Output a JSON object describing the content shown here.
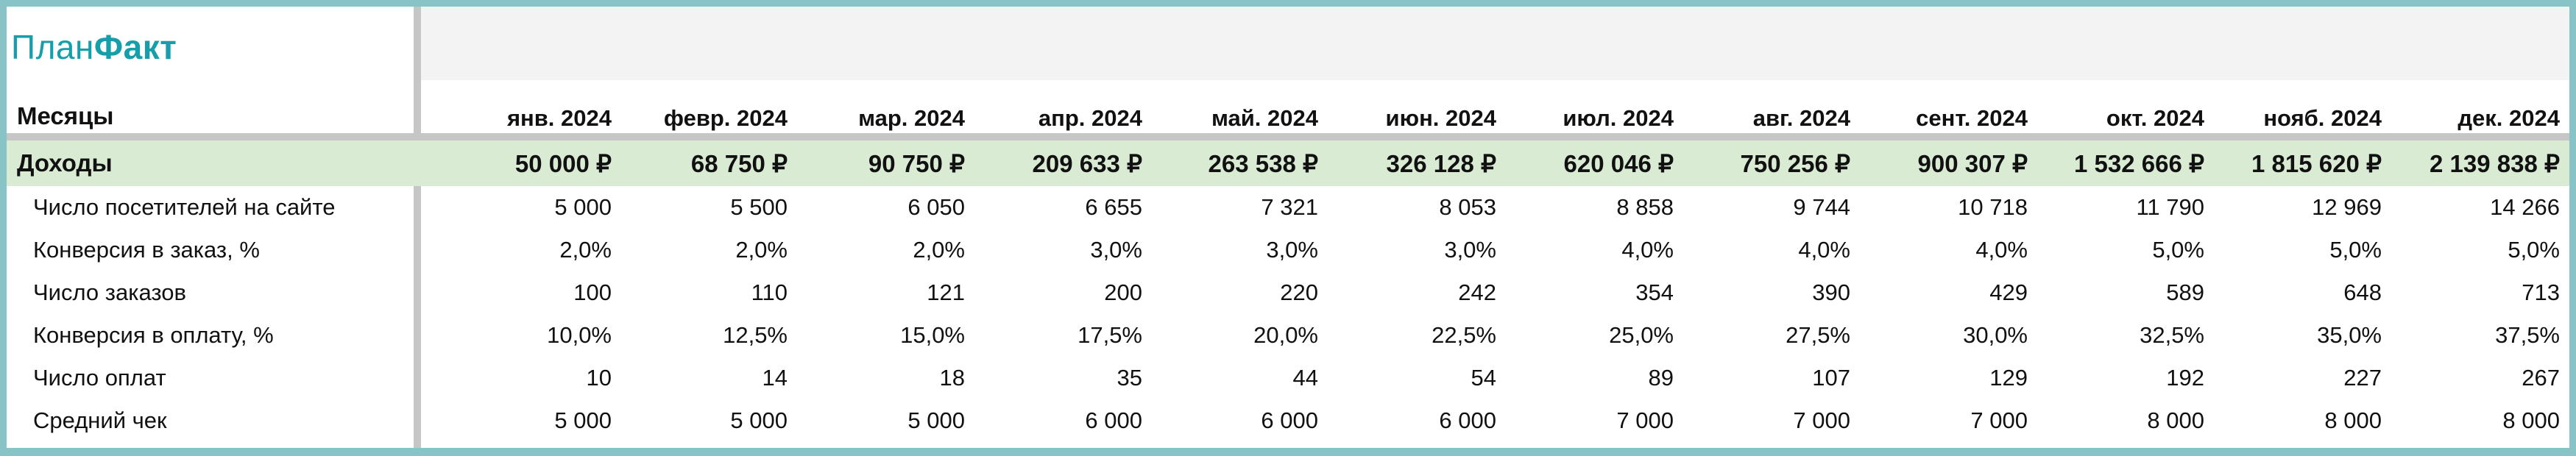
{
  "logo": {
    "part1": "План",
    "part2": "Факт"
  },
  "header_label": "Месяцы",
  "months": [
    "янв. 2024",
    "февр. 2024",
    "мар. 2024",
    "апр. 2024",
    "май. 2024",
    "июн. 2024",
    "июл. 2024",
    "авг. 2024",
    "сент. 2024",
    "окт. 2024",
    "нояб. 2024",
    "дек. 2024"
  ],
  "income": {
    "label": "Доходы",
    "values": [
      "50 000 ₽",
      "68 750 ₽",
      "90 750 ₽",
      "209 633 ₽",
      "263 538 ₽",
      "326 128 ₽",
      "620 046 ₽",
      "750 256 ₽",
      "900 307 ₽",
      "1 532 666 ₽",
      "1 815 620 ₽",
      "2 139 838 ₽"
    ]
  },
  "rows": [
    {
      "label": "Число посетителей на сайте",
      "values": [
        "5 000",
        "5 500",
        "6 050",
        "6 655",
        "7 321",
        "8 053",
        "8 858",
        "9 744",
        "10 718",
        "11 790",
        "12 969",
        "14 266"
      ]
    },
    {
      "label": "Конверсия в заказ, %",
      "values": [
        "2,0%",
        "2,0%",
        "2,0%",
        "3,0%",
        "3,0%",
        "3,0%",
        "4,0%",
        "4,0%",
        "4,0%",
        "5,0%",
        "5,0%",
        "5,0%"
      ]
    },
    {
      "label": "Число заказов",
      "values": [
        "100",
        "110",
        "121",
        "200",
        "220",
        "242",
        "354",
        "390",
        "429",
        "589",
        "648",
        "713"
      ]
    },
    {
      "label": "Конверсия в оплату, %",
      "values": [
        "10,0%",
        "12,5%",
        "15,0%",
        "17,5%",
        "20,0%",
        "22,5%",
        "25,0%",
        "27,5%",
        "30,0%",
        "32,5%",
        "35,0%",
        "37,5%"
      ]
    },
    {
      "label": "Число оплат",
      "values": [
        "10",
        "14",
        "18",
        "35",
        "44",
        "54",
        "89",
        "107",
        "129",
        "192",
        "227",
        "267"
      ]
    },
    {
      "label": "Средний чек",
      "values": [
        "5 000",
        "5 000",
        "5 000",
        "6 000",
        "6 000",
        "6 000",
        "7 000",
        "7 000",
        "7 000",
        "8 000",
        "8 000",
        "8 000"
      ]
    }
  ]
}
